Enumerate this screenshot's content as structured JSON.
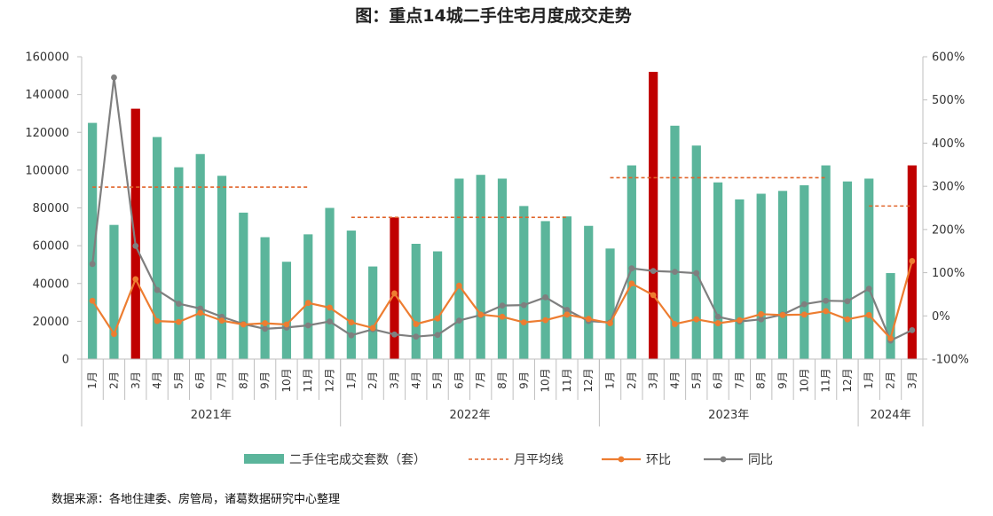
{
  "chart_data": {
    "type": "bar",
    "title": "图：重点14城二手住宅月度成交走势",
    "source": "数据来源：各地住建委、房管局，诸葛数据研究中心整理",
    "colors": {
      "bar": "#5bb59b",
      "bar_highlight": "#c00000",
      "avg_line": "#e0642a",
      "mom": "#ed7d31",
      "yoy": "#7f7f7f",
      "axis": "#bfbfbf"
    },
    "y_left": {
      "min": 0,
      "max": 160000,
      "ticks": [
        "0",
        "20000",
        "40000",
        "60000",
        "80000",
        "100000",
        "120000",
        "140000",
        "160000"
      ]
    },
    "y_right": {
      "min": -100,
      "max": 600,
      "ticks": [
        "-100%",
        "0%",
        "100%",
        "200%",
        "300%",
        "400%",
        "500%",
        "600%"
      ]
    },
    "categories": [
      "1月",
      "2月",
      "3月",
      "4月",
      "5月",
      "6月",
      "7月",
      "8月",
      "9月",
      "10月",
      "11月",
      "12月",
      "1月",
      "2月",
      "3月",
      "4月",
      "5月",
      "6月",
      "7月",
      "8月",
      "9月",
      "10月",
      "11月",
      "12月",
      "1月",
      "2月",
      "3月",
      "4月",
      "5月",
      "6月",
      "7月",
      "8月",
      "9月",
      "10月",
      "11月",
      "12月",
      "1月",
      "2月",
      "3月"
    ],
    "years": [
      {
        "label": "2021年",
        "start": 0,
        "count": 12
      },
      {
        "label": "2022年",
        "start": 12,
        "count": 12
      },
      {
        "label": "2023年",
        "start": 24,
        "count": 12
      },
      {
        "label": "2024年",
        "start": 36,
        "count": 3
      }
    ],
    "highlight_indices": [
      2,
      14,
      26,
      38
    ],
    "series": [
      {
        "name": "二手住宅成交套数（套）",
        "kind": "bar",
        "values": [
          125000,
          71000,
          132500,
          117500,
          101500,
          108500,
          97000,
          77500,
          64500,
          51500,
          66000,
          80000,
          68000,
          49000,
          75000,
          61000,
          57000,
          95500,
          97500,
          95500,
          81000,
          73000,
          75500,
          70500,
          58500,
          102500,
          152000,
          123500,
          113000,
          93500,
          84500,
          87500,
          89000,
          92000,
          102500,
          94000,
          95500,
          45500,
          102500
        ]
      },
      {
        "name": "月平均线",
        "kind": "avg",
        "segments": [
          {
            "start": 0,
            "end": 10,
            "value": 91000
          },
          {
            "start": 12,
            "end": 22,
            "value": 75000
          },
          {
            "start": 24,
            "end": 34,
            "value": 96000
          },
          {
            "start": 36,
            "end": 38,
            "value": 81000
          }
        ]
      },
      {
        "name": "环比",
        "kind": "line",
        "axis": "right",
        "values": [
          35,
          -42,
          85,
          -12,
          -14,
          7,
          -11,
          -20,
          -17,
          -20,
          30,
          19,
          -15,
          -28,
          52,
          -19,
          -6,
          70,
          3,
          -2,
          -15,
          -10,
          3,
          -7,
          -17,
          75,
          48,
          -19,
          -8,
          -17,
          -10,
          4,
          2,
          3,
          11,
          -8,
          2,
          -52,
          127
        ]
      },
      {
        "name": "同比",
        "kind": "line",
        "axis": "right",
        "values": [
          120,
          552,
          162,
          60,
          28,
          17,
          -2,
          -19,
          -30,
          -27,
          -22,
          -13,
          -45,
          -31,
          -43,
          -48,
          -44,
          -11,
          2,
          24,
          25,
          43,
          14,
          -12,
          -15,
          110,
          104,
          102,
          99,
          -2,
          -13,
          -8,
          3,
          27,
          35,
          34,
          63,
          -57,
          -33
        ]
      }
    ],
    "legend": [
      "二手住宅成交套数（套）",
      "月平均线",
      "环比",
      "同比"
    ],
    "legend_placement": "bottom"
  }
}
